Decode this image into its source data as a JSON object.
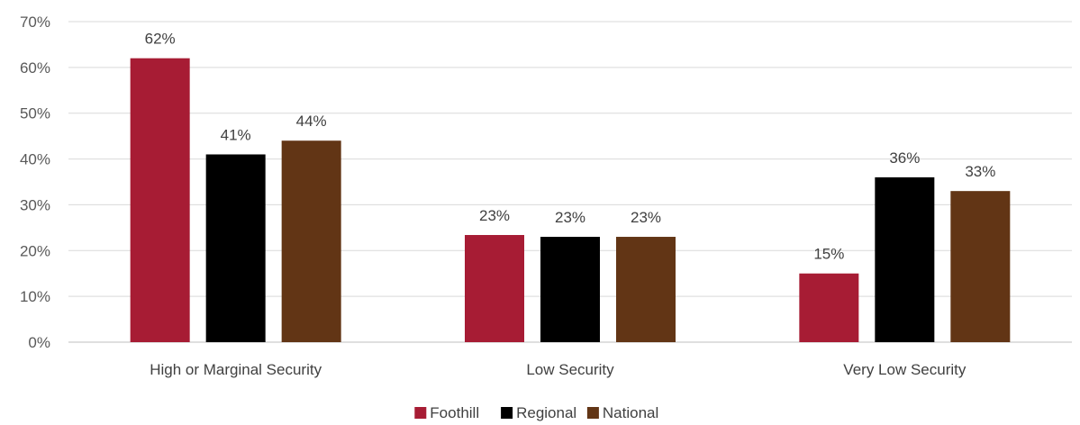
{
  "chart_data": {
    "type": "bar",
    "categories": [
      "High or Marginal Security",
      "Low Security",
      "Very Low Security"
    ],
    "series": [
      {
        "name": "Foothill",
        "color": "#a71c34",
        "values": [
          62,
          23.4,
          15
        ],
        "labels": [
          "62%",
          "23%",
          "15%"
        ]
      },
      {
        "name": "Regional",
        "color": "#000000",
        "values": [
          41,
          23,
          36
        ],
        "labels": [
          "41%",
          "23%",
          "36%"
        ]
      },
      {
        "name": "National",
        "color": "#623515",
        "values": [
          44,
          23,
          33
        ],
        "labels": [
          "44%",
          "23%",
          "33%"
        ]
      }
    ],
    "ylim": [
      0,
      70
    ],
    "yticks": [
      0,
      10,
      20,
      30,
      40,
      50,
      60,
      70
    ],
    "ytick_labels": [
      "0%",
      "10%",
      "20%",
      "30%",
      "40%",
      "50%",
      "60%",
      "70%"
    ],
    "grid": true,
    "legend": "bottom-center",
    "title": "",
    "xlabel": "",
    "ylabel": ""
  }
}
